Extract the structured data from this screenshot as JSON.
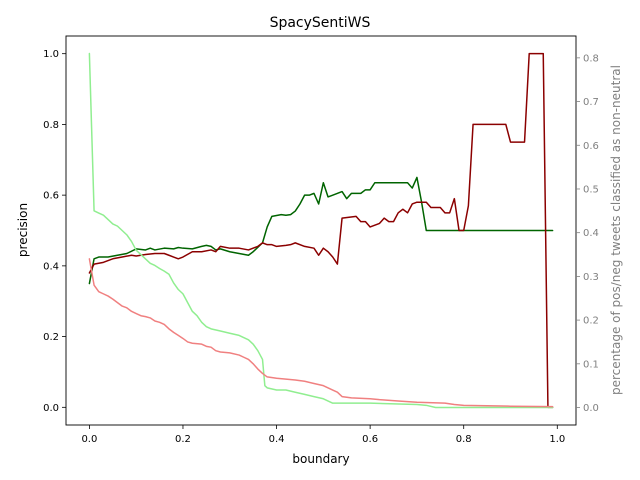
{
  "chart_data": {
    "type": "line",
    "title": "SpacySentiWS",
    "xlabel": "boundary",
    "ylabel": "precision",
    "ylabel_right": "percentage of pos/neg tweets classified as non-neutral",
    "xlim": [
      -0.05,
      1.04
    ],
    "ylim": [
      -0.05,
      1.05
    ],
    "ylim_right": [
      -0.04,
      0.85
    ],
    "x_ticks": [
      0.0,
      0.2,
      0.4,
      0.6,
      0.8,
      1.0
    ],
    "x_tick_labels": [
      "0.0",
      "0.2",
      "0.4",
      "0.6",
      "0.8",
      "1.0"
    ],
    "y_ticks": [
      0.0,
      0.2,
      0.4,
      0.6,
      0.8,
      1.0
    ],
    "y_tick_labels": [
      "0.0",
      "0.2",
      "0.4",
      "0.6",
      "0.8",
      "1.0"
    ],
    "y_right_ticks": [
      0.0,
      0.1,
      0.2,
      0.3,
      0.4,
      0.5,
      0.6,
      0.7,
      0.8
    ],
    "y_right_tick_labels": [
      "0.0",
      "0.1",
      "0.2",
      "0.3",
      "0.4",
      "0.5",
      "0.6",
      "0.7",
      "0.8"
    ],
    "grid": false,
    "series": [
      {
        "axis": "left",
        "color": "#006400",
        "points": [
          [
            0.0,
            0.35
          ],
          [
            0.01,
            0.42
          ],
          [
            0.02,
            0.425
          ],
          [
            0.04,
            0.425
          ],
          [
            0.06,
            0.43
          ],
          [
            0.08,
            0.435
          ],
          [
            0.1,
            0.448
          ],
          [
            0.12,
            0.445
          ],
          [
            0.13,
            0.45
          ],
          [
            0.14,
            0.445
          ],
          [
            0.16,
            0.45
          ],
          [
            0.18,
            0.448
          ],
          [
            0.19,
            0.452
          ],
          [
            0.2,
            0.45
          ],
          [
            0.22,
            0.448
          ],
          [
            0.24,
            0.455
          ],
          [
            0.25,
            0.458
          ],
          [
            0.26,
            0.455
          ],
          [
            0.27,
            0.445
          ],
          [
            0.28,
            0.448
          ],
          [
            0.3,
            0.44
          ],
          [
            0.32,
            0.435
          ],
          [
            0.34,
            0.43
          ],
          [
            0.35,
            0.44
          ],
          [
            0.37,
            0.465
          ],
          [
            0.38,
            0.51
          ],
          [
            0.39,
            0.54
          ],
          [
            0.41,
            0.545
          ],
          [
            0.42,
            0.543
          ],
          [
            0.43,
            0.545
          ],
          [
            0.44,
            0.555
          ],
          [
            0.45,
            0.575
          ],
          [
            0.46,
            0.6
          ],
          [
            0.47,
            0.6
          ],
          [
            0.48,
            0.605
          ],
          [
            0.49,
            0.575
          ],
          [
            0.5,
            0.635
          ],
          [
            0.51,
            0.595
          ],
          [
            0.52,
            0.6
          ],
          [
            0.54,
            0.61
          ],
          [
            0.55,
            0.59
          ],
          [
            0.56,
            0.605
          ],
          [
            0.58,
            0.605
          ],
          [
            0.59,
            0.615
          ],
          [
            0.6,
            0.615
          ],
          [
            0.61,
            0.635
          ],
          [
            0.62,
            0.635
          ],
          [
            0.68,
            0.635
          ],
          [
            0.69,
            0.62
          ],
          [
            0.7,
            0.65
          ],
          [
            0.71,
            0.58
          ],
          [
            0.72,
            0.5
          ],
          [
            0.99,
            0.5
          ]
        ]
      },
      {
        "axis": "left",
        "color": "#8b0000",
        "points": [
          [
            0.0,
            0.38
          ],
          [
            0.01,
            0.405
          ],
          [
            0.03,
            0.41
          ],
          [
            0.05,
            0.42
          ],
          [
            0.07,
            0.425
          ],
          [
            0.09,
            0.43
          ],
          [
            0.1,
            0.428
          ],
          [
            0.12,
            0.432
          ],
          [
            0.14,
            0.435
          ],
          [
            0.16,
            0.435
          ],
          [
            0.17,
            0.43
          ],
          [
            0.18,
            0.425
          ],
          [
            0.19,
            0.42
          ],
          [
            0.2,
            0.425
          ],
          [
            0.22,
            0.44
          ],
          [
            0.24,
            0.44
          ],
          [
            0.26,
            0.445
          ],
          [
            0.27,
            0.44
          ],
          [
            0.28,
            0.455
          ],
          [
            0.3,
            0.45
          ],
          [
            0.32,
            0.45
          ],
          [
            0.34,
            0.445
          ],
          [
            0.36,
            0.455
          ],
          [
            0.37,
            0.465
          ],
          [
            0.38,
            0.46
          ],
          [
            0.39,
            0.46
          ],
          [
            0.4,
            0.455
          ],
          [
            0.42,
            0.458
          ],
          [
            0.43,
            0.46
          ],
          [
            0.44,
            0.465
          ],
          [
            0.46,
            0.455
          ],
          [
            0.48,
            0.45
          ],
          [
            0.49,
            0.43
          ],
          [
            0.5,
            0.45
          ],
          [
            0.51,
            0.44
          ],
          [
            0.52,
            0.425
          ],
          [
            0.53,
            0.405
          ],
          [
            0.54,
            0.535
          ],
          [
            0.57,
            0.54
          ],
          [
            0.58,
            0.525
          ],
          [
            0.59,
            0.525
          ],
          [
            0.6,
            0.51
          ],
          [
            0.62,
            0.52
          ],
          [
            0.63,
            0.535
          ],
          [
            0.64,
            0.525
          ],
          [
            0.65,
            0.525
          ],
          [
            0.66,
            0.55
          ],
          [
            0.67,
            0.56
          ],
          [
            0.68,
            0.55
          ],
          [
            0.69,
            0.575
          ],
          [
            0.7,
            0.58
          ],
          [
            0.72,
            0.58
          ],
          [
            0.73,
            0.565
          ],
          [
            0.75,
            0.565
          ],
          [
            0.76,
            0.55
          ],
          [
            0.77,
            0.55
          ],
          [
            0.78,
            0.59
          ],
          [
            0.79,
            0.5
          ],
          [
            0.8,
            0.5
          ],
          [
            0.81,
            0.57
          ],
          [
            0.82,
            0.8
          ],
          [
            0.89,
            0.8
          ],
          [
            0.9,
            0.75
          ],
          [
            0.93,
            0.75
          ],
          [
            0.94,
            1.0
          ],
          [
            0.97,
            1.0
          ],
          [
            0.98,
            0.0
          ],
          [
            0.99,
            0.0
          ]
        ]
      },
      {
        "axis": "right",
        "color": "#90ee90",
        "points": [
          [
            0.0,
            0.81
          ],
          [
            0.01,
            0.45
          ],
          [
            0.02,
            0.445
          ],
          [
            0.03,
            0.44
          ],
          [
            0.04,
            0.43
          ],
          [
            0.05,
            0.42
          ],
          [
            0.06,
            0.415
          ],
          [
            0.07,
            0.405
          ],
          [
            0.08,
            0.395
          ],
          [
            0.09,
            0.38
          ],
          [
            0.1,
            0.36
          ],
          [
            0.11,
            0.35
          ],
          [
            0.12,
            0.34
          ],
          [
            0.13,
            0.33
          ],
          [
            0.14,
            0.325
          ],
          [
            0.15,
            0.318
          ],
          [
            0.16,
            0.312
          ],
          [
            0.17,
            0.305
          ],
          [
            0.18,
            0.285
          ],
          [
            0.19,
            0.27
          ],
          [
            0.2,
            0.26
          ],
          [
            0.21,
            0.24
          ],
          [
            0.22,
            0.22
          ],
          [
            0.23,
            0.21
          ],
          [
            0.24,
            0.195
          ],
          [
            0.25,
            0.185
          ],
          [
            0.26,
            0.18
          ],
          [
            0.28,
            0.175
          ],
          [
            0.3,
            0.17
          ],
          [
            0.32,
            0.165
          ],
          [
            0.34,
            0.155
          ],
          [
            0.35,
            0.145
          ],
          [
            0.36,
            0.13
          ],
          [
            0.37,
            0.11
          ],
          [
            0.375,
            0.05
          ],
          [
            0.38,
            0.045
          ],
          [
            0.4,
            0.04
          ],
          [
            0.42,
            0.04
          ],
          [
            0.44,
            0.035
          ],
          [
            0.46,
            0.03
          ],
          [
            0.48,
            0.025
          ],
          [
            0.5,
            0.02
          ],
          [
            0.52,
            0.01
          ],
          [
            0.6,
            0.01
          ],
          [
            0.7,
            0.007
          ],
          [
            0.72,
            0.005
          ],
          [
            0.74,
            0.0
          ],
          [
            0.99,
            0.0
          ]
        ]
      },
      {
        "axis": "right",
        "color": "#f08080",
        "points": [
          [
            0.0,
            0.34
          ],
          [
            0.01,
            0.28
          ],
          [
            0.02,
            0.265
          ],
          [
            0.03,
            0.26
          ],
          [
            0.04,
            0.255
          ],
          [
            0.05,
            0.248
          ],
          [
            0.06,
            0.24
          ],
          [
            0.07,
            0.232
          ],
          [
            0.08,
            0.228
          ],
          [
            0.09,
            0.22
          ],
          [
            0.1,
            0.215
          ],
          [
            0.11,
            0.21
          ],
          [
            0.12,
            0.208
          ],
          [
            0.13,
            0.205
          ],
          [
            0.14,
            0.198
          ],
          [
            0.15,
            0.195
          ],
          [
            0.16,
            0.19
          ],
          [
            0.17,
            0.18
          ],
          [
            0.18,
            0.172
          ],
          [
            0.19,
            0.165
          ],
          [
            0.2,
            0.158
          ],
          [
            0.21,
            0.15
          ],
          [
            0.22,
            0.147
          ],
          [
            0.24,
            0.145
          ],
          [
            0.25,
            0.14
          ],
          [
            0.26,
            0.138
          ],
          [
            0.27,
            0.13
          ],
          [
            0.28,
            0.127
          ],
          [
            0.3,
            0.125
          ],
          [
            0.32,
            0.12
          ],
          [
            0.33,
            0.115
          ],
          [
            0.34,
            0.11
          ],
          [
            0.35,
            0.1
          ],
          [
            0.36,
            0.088
          ],
          [
            0.37,
            0.078
          ],
          [
            0.38,
            0.07
          ],
          [
            0.4,
            0.067
          ],
          [
            0.42,
            0.065
          ],
          [
            0.44,
            0.063
          ],
          [
            0.46,
            0.06
          ],
          [
            0.48,
            0.055
          ],
          [
            0.5,
            0.05
          ],
          [
            0.52,
            0.04
          ],
          [
            0.53,
            0.035
          ],
          [
            0.54,
            0.025
          ],
          [
            0.56,
            0.022
          ],
          [
            0.6,
            0.02
          ],
          [
            0.62,
            0.018
          ],
          [
            0.66,
            0.015
          ],
          [
            0.7,
            0.012
          ],
          [
            0.76,
            0.01
          ],
          [
            0.78,
            0.007
          ],
          [
            0.8,
            0.005
          ],
          [
            0.85,
            0.004
          ],
          [
            0.9,
            0.003
          ],
          [
            0.99,
            0.002
          ]
        ]
      }
    ]
  }
}
